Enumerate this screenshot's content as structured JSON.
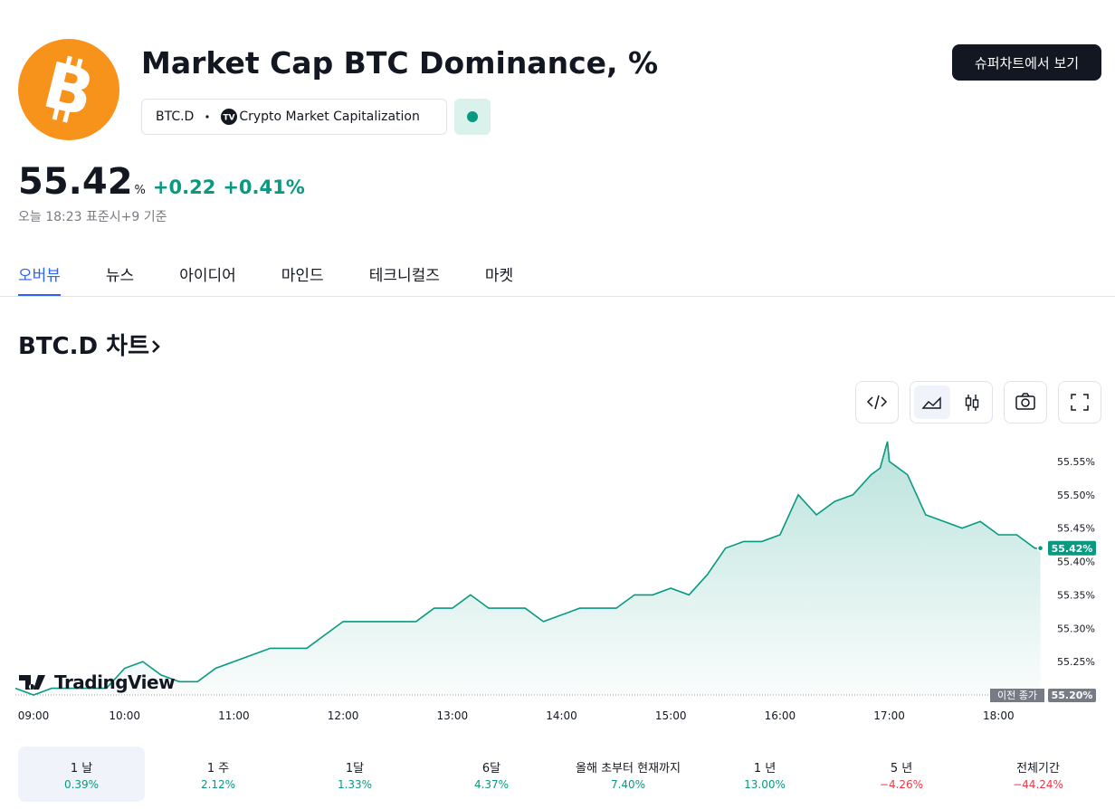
{
  "header": {
    "title": "Market Cap BTC Dominance, %",
    "symbol": "BTC.D",
    "source": "Crypto Market Capitalization",
    "button": "슈퍼차트에서 보기"
  },
  "quote": {
    "price": "55.42",
    "unit": "%",
    "change": "+0.22",
    "change_percent": "+0.41%",
    "timestamp": "오늘 18:23 표준시+9 기준"
  },
  "tabs": [
    "오버뷰",
    "뉴스",
    "아이디어",
    "마인드",
    "테크니컬즈",
    "마켓"
  ],
  "section_title": "BTC.D 차트",
  "watermark": "TradingView",
  "chart_data": {
    "type": "line",
    "color": "#089981",
    "x": [
      "09:00",
      "09:10",
      "09:20",
      "09:30",
      "09:40",
      "09:50",
      "10:00",
      "10:10",
      "10:20",
      "10:30",
      "10:40",
      "10:50",
      "11:00",
      "11:10",
      "11:20",
      "11:30",
      "11:40",
      "11:50",
      "12:00",
      "12:10",
      "12:20",
      "12:30",
      "12:40",
      "12:50",
      "13:00",
      "13:10",
      "13:20",
      "13:30",
      "13:40",
      "13:50",
      "14:00",
      "14:10",
      "14:20",
      "14:30",
      "14:40",
      "14:50",
      "15:00",
      "15:10",
      "15:20",
      "15:30",
      "15:40",
      "15:50",
      "16:00",
      "16:10",
      "16:20",
      "16:30",
      "16:40",
      "16:50",
      "16:55",
      "16:59",
      "17:00",
      "17:10",
      "17:20",
      "17:30",
      "17:40",
      "17:50",
      "18:00",
      "18:10",
      "18:20",
      "18:23"
    ],
    "values": [
      55.21,
      55.2,
      55.21,
      55.21,
      55.21,
      55.21,
      55.24,
      55.25,
      55.23,
      55.22,
      55.22,
      55.24,
      55.25,
      55.26,
      55.27,
      55.27,
      55.27,
      55.29,
      55.31,
      55.31,
      55.31,
      55.31,
      55.31,
      55.33,
      55.33,
      55.35,
      55.33,
      55.33,
      55.33,
      55.31,
      55.32,
      55.33,
      55.33,
      55.33,
      55.35,
      55.35,
      55.36,
      55.35,
      55.38,
      55.42,
      55.43,
      55.43,
      55.44,
      55.5,
      55.47,
      55.49,
      55.5,
      55.53,
      55.54,
      55.58,
      55.55,
      55.53,
      55.47,
      55.46,
      55.45,
      55.46,
      55.44,
      55.44,
      55.42,
      55.42
    ],
    "xlim": [
      "09:00",
      "18:25"
    ],
    "xticks": [
      "09:00",
      "10:00",
      "11:00",
      "12:00",
      "13:00",
      "14:00",
      "15:00",
      "16:00",
      "17:00",
      "18:00"
    ],
    "ylim": [
      55.2,
      55.6
    ],
    "yticks": [
      {
        "value": 55.25,
        "label": "55.25%"
      },
      {
        "value": 55.3,
        "label": "55.30%"
      },
      {
        "value": 55.35,
        "label": "55.35%"
      },
      {
        "value": 55.4,
        "label": "55.40%"
      },
      {
        "value": 55.45,
        "label": "55.45%"
      },
      {
        "value": 55.5,
        "label": "55.50%"
      },
      {
        "value": 55.55,
        "label": "55.55%"
      }
    ],
    "last_value": {
      "value": 55.42,
      "label": "55.42%"
    },
    "previous_close": {
      "label": "이전 종가",
      "value": 55.2,
      "value_label": "55.20%"
    }
  },
  "periods": [
    {
      "label": "1 날",
      "change": "0.39%"
    },
    {
      "label": "1 주",
      "change": "2.12%"
    },
    {
      "label": "1달",
      "change": "1.33%"
    },
    {
      "label": "6달",
      "change": "4.37%"
    },
    {
      "label": "올해 초부터 현재까지",
      "change": "7.40%"
    },
    {
      "label": "1 년",
      "change": "13.00%"
    },
    {
      "label": "5 년",
      "change": "−4.26%"
    },
    {
      "label": "전체기간",
      "change": "−44.24%"
    }
  ]
}
